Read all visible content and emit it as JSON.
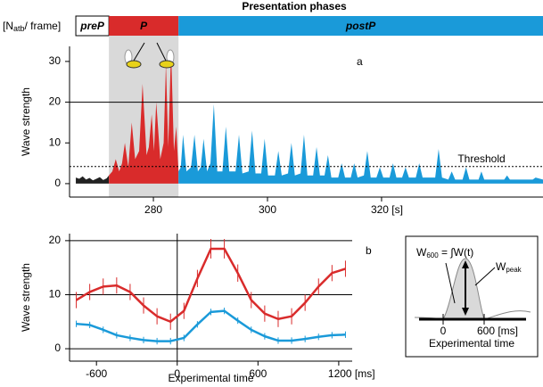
{
  "chart_data": [
    {
      "type": "area",
      "phases_title": "Presentation phases",
      "unit_label": [
        "[N",
        "atb",
        "/ frame]"
      ],
      "phases": [
        {
          "label": "preP",
          "start": 266.4,
          "end": 272.2,
          "color": "#ffffff"
        },
        {
          "label": "P",
          "start": 272.2,
          "end": 284.4,
          "color": "#d92b2b"
        },
        {
          "label": "postP",
          "start": 284.4,
          "end": 348.3,
          "color": "#1a9ad9"
        }
      ],
      "panel_label": "a",
      "y_label": "Wave strength",
      "xlim": [
        265.3,
        348.3
      ],
      "ylim": [
        -3.3,
        33.7
      ],
      "xticks": [
        280,
        300,
        {
          "value": 320,
          "label": "320 [s]"
        }
      ],
      "yticks": [
        0,
        10,
        20,
        30
      ],
      "reference_line": 20,
      "threshold": {
        "value": 4.2,
        "label": "Threshold"
      },
      "shaded_span": [
        272.2,
        284.4
      ],
      "series": [
        {
          "color": "#222222",
          "x": [
            266.4,
            267,
            267.6,
            268.2,
            268.8,
            269.4,
            270,
            270.6,
            271.2,
            271.8,
            272.2
          ],
          "values": [
            1.5,
            1.2,
            1.8,
            1,
            1.4,
            0.8,
            1.2,
            1.6,
            0.9,
            1.3,
            2
          ]
        },
        {
          "color": "#d92b2b",
          "x": [
            272.2,
            272.8,
            273.4,
            274.0,
            274.5,
            275.0,
            275.6,
            276.2,
            276.8,
            277.5,
            278.1,
            278.8,
            279.2,
            279.7,
            280.1,
            280.5,
            281.2,
            281.8,
            282.2,
            282.6,
            283.1,
            283.6,
            284.0,
            284.4
          ],
          "values": [
            2,
            3,
            6,
            3,
            5,
            10,
            4,
            15,
            6,
            8,
            24.5,
            7,
            9,
            17,
            8,
            20,
            6,
            10,
            29.5,
            9,
            33,
            8,
            14,
            3
          ]
        },
        {
          "color": "#1a9ad9",
          "x": [
            284.4,
            284.8,
            285.2,
            285.8,
            286.6,
            287.2,
            287.8,
            288.3,
            288.8,
            289.4,
            290.0,
            290.6,
            291.2,
            292.1,
            292.7,
            293.3,
            294.4,
            295.0,
            295.6,
            296.7,
            297.3,
            297.9,
            298.9,
            299.5,
            300.1,
            301.3,
            301.9,
            302.5,
            303.6,
            304.2,
            304.8,
            305.8,
            306.4,
            307.0,
            308.0,
            308.6,
            309.2,
            310.0,
            310.6,
            311.2,
            312.4,
            313.0,
            313.6,
            314.6,
            315.2,
            315.8,
            316.9,
            317.5,
            318.1,
            319.1,
            319.7,
            320.3,
            321.4,
            322.0,
            322.6,
            323.6,
            324.2,
            324.8,
            326.0,
            326.6,
            327.2,
            329.4,
            330.0,
            330.6,
            331.7,
            332.3,
            332.9,
            334.2,
            334.8,
            335.4,
            337,
            337.5,
            338,
            341.5,
            342,
            342.5,
            346.5,
            347,
            348.3
          ],
          "values": [
            3,
            4,
            12,
            3,
            4,
            12,
            3,
            4,
            11,
            3,
            5,
            19.5,
            3,
            3,
            14,
            3,
            3,
            12,
            2.5,
            3,
            13,
            2.5,
            2.5,
            11,
            2,
            2,
            8,
            2,
            2.5,
            10,
            2,
            2.5,
            12,
            2,
            2,
            9,
            2,
            2,
            7,
            1.5,
            1.5,
            5,
            1.5,
            1.5,
            5,
            1.5,
            2,
            8,
            1.5,
            1.5,
            4,
            1.5,
            1.5,
            5,
            1.5,
            1.5,
            4,
            1.5,
            1.5,
            5,
            1.5,
            1.5,
            8.5,
            1.5,
            1,
            3,
            1,
            1,
            4,
            1,
            1,
            3,
            1,
            1,
            2,
            1,
            1,
            1.5,
            1
          ]
        }
      ]
    },
    {
      "type": "line",
      "panel_label": "b",
      "y_label": "Wave strength",
      "x_label": "Experimental time",
      "xlim": [
        -800,
        1300
      ],
      "ylim": [
        -2.3,
        21.3
      ],
      "xticks": [
        -600,
        0,
        600,
        {
          "value": 1200,
          "label": "1200 [ms]"
        }
      ],
      "yticks": [
        0,
        10,
        20
      ],
      "grid": true,
      "vline": 0,
      "x": [
        -750,
        -650,
        -550,
        -450,
        -350,
        -250,
        -150,
        -50,
        50,
        150,
        250,
        350,
        450,
        550,
        650,
        750,
        850,
        950,
        1050,
        1150,
        1250
      ],
      "series": [
        {
          "color": "#d92b2b",
          "values": [
            9,
            10.5,
            11.5,
            11.7,
            10.5,
            8,
            6,
            5,
            7,
            13,
            18.5,
            18.5,
            14,
            9,
            6.5,
            5.5,
            6,
            8.5,
            11.5,
            14,
            14.8
          ],
          "errors": [
            1.5,
            1.5,
            1.5,
            1.5,
            1.5,
            1.5,
            1.5,
            1.5,
            1.5,
            1.6,
            1.8,
            1.8,
            1.6,
            1.5,
            1.5,
            1.5,
            1.5,
            1.5,
            1.5,
            1.5,
            1.5
          ]
        },
        {
          "color": "#1a9ad9",
          "values": [
            4.6,
            4.4,
            3.5,
            2.5,
            2,
            1.6,
            1.4,
            1.4,
            2,
            4.5,
            6.8,
            7,
            5.2,
            3.5,
            2.3,
            1.5,
            1.5,
            1.8,
            2.2,
            2.5,
            2.6
          ],
          "errors": [
            0.6,
            0.6,
            0.6,
            0.6,
            0.6,
            0.6,
            0.6,
            0.6,
            0.6,
            0.6,
            0.6,
            0.6,
            0.6,
            0.6,
            0.6,
            0.6,
            0.6,
            0.6,
            0.6,
            0.6,
            0.6
          ]
        }
      ]
    }
  ],
  "inset": {
    "integral_label": [
      "W",
      "600",
      " = ∫W(t)"
    ],
    "peak_label": [
      "W",
      "peak"
    ],
    "ticks": [
      "0",
      "600 [ms]"
    ],
    "x_label": "Experimental time"
  }
}
